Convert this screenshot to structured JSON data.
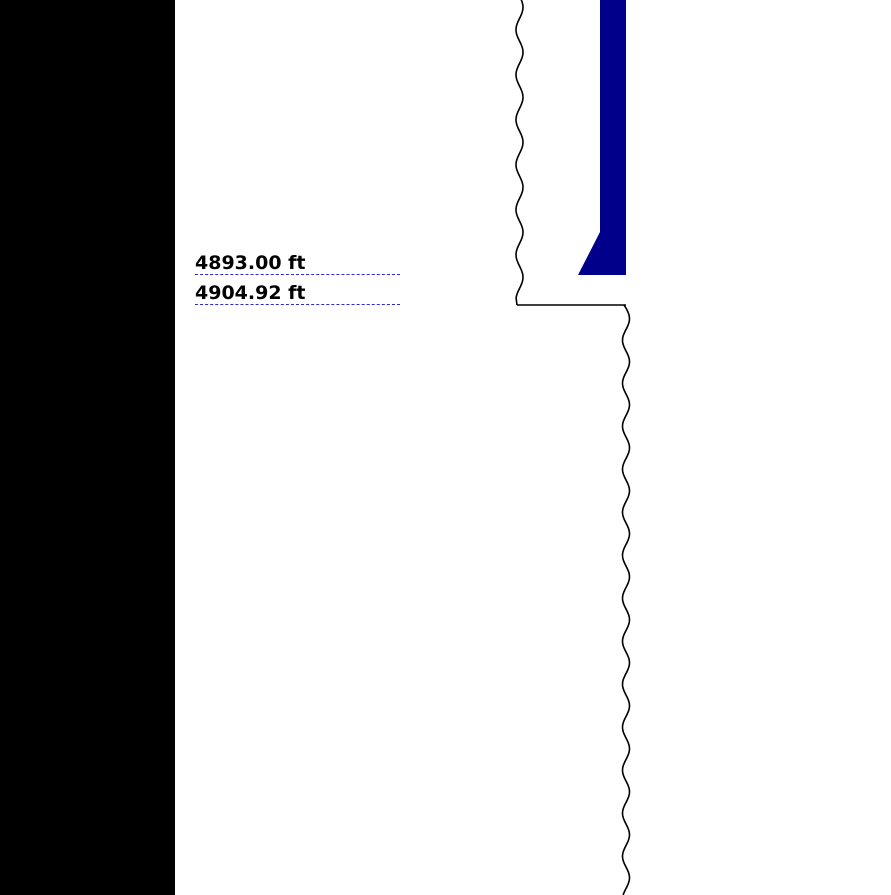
{
  "depth_markers": [
    {
      "label": "4893.00 ft",
      "depth_ft": 4893.0
    },
    {
      "label": "4904.92 ft",
      "depth_ft": 4904.92
    }
  ],
  "colors": {
    "background": "#ffffff",
    "panel": "#000000",
    "pipe": "#00008b",
    "marker_line": "#2b2bd6",
    "outline": "#000000"
  },
  "icons": {
    "pipe_shape": "casing-shoe",
    "wall": "wavy-borehole-wall"
  }
}
